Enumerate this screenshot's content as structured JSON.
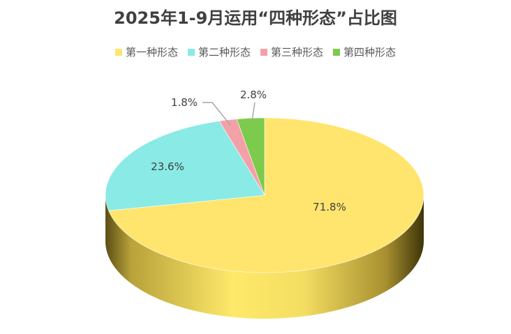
{
  "chart_data": {
    "type": "pie",
    "title": "2025年1-9月运用“四种形态”占比图",
    "legend_position": "top",
    "slices": [
      {
        "label": "第一种形态",
        "value": 71.8,
        "display": "71.8%",
        "color": "#FFE56E"
      },
      {
        "label": "第二种形态",
        "value": 23.6,
        "display": "23.6%",
        "color": "#8AEAE6"
      },
      {
        "label": "第三种形态",
        "value": 1.8,
        "display": "1.8%",
        "color": "#F4A0A8"
      },
      {
        "label": "第四种形态",
        "value": 2.8,
        "display": "2.8%",
        "color": "#7CCB4C"
      }
    ]
  }
}
